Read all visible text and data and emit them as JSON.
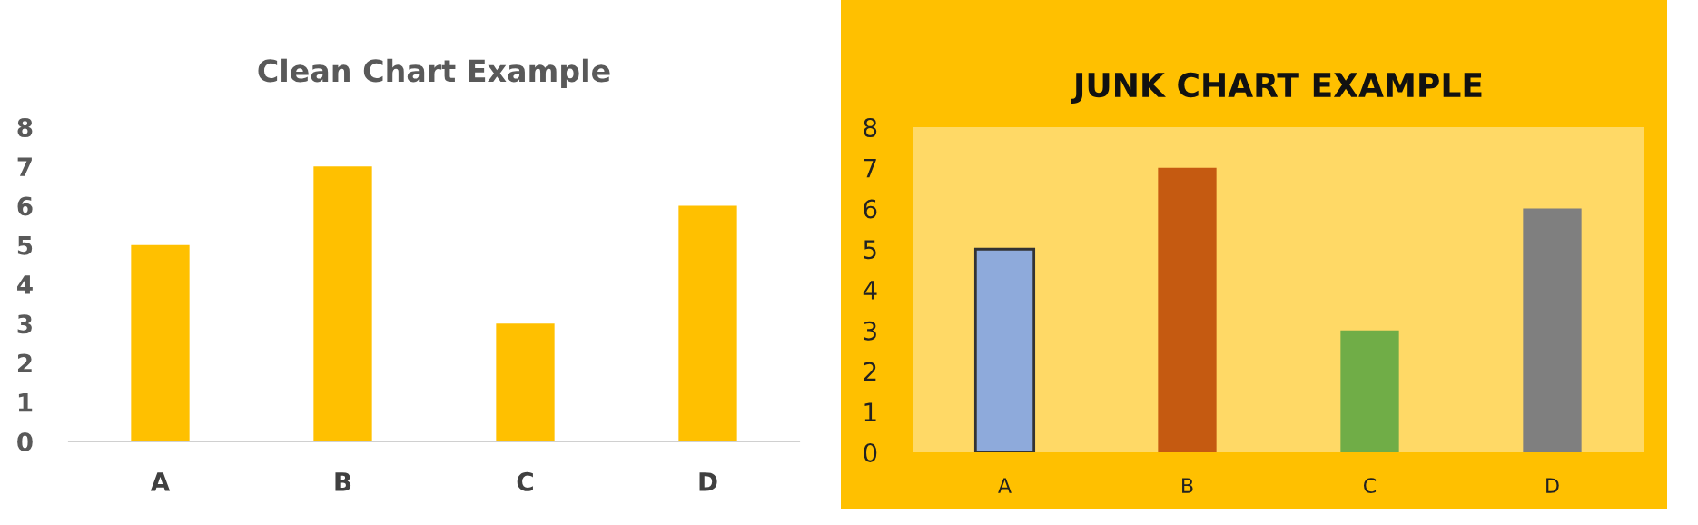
{
  "chart_data": [
    {
      "type": "bar",
      "title": "Clean Chart Example",
      "categories": [
        "A",
        "B",
        "C",
        "D"
      ],
      "values": [
        5,
        7,
        3,
        6
      ],
      "color": "#ffc000",
      "ylim": [
        0,
        8
      ],
      "yticks": [
        0,
        1,
        2,
        3,
        4,
        5,
        6,
        7,
        8
      ],
      "grid": false
    },
    {
      "type": "bar",
      "title": "JUNK CHART EXAMPLE",
      "categories": [
        "A",
        "B",
        "C",
        "D"
      ],
      "values": [
        5,
        7,
        3,
        6
      ],
      "colors": [
        "#8eaadb",
        "#c55a11",
        "#70ad47",
        "#7f7f7f"
      ],
      "ylim": [
        0,
        8
      ],
      "yticks": [
        0,
        1,
        2,
        3,
        4,
        5,
        6,
        7,
        8
      ],
      "grid": false
    }
  ]
}
